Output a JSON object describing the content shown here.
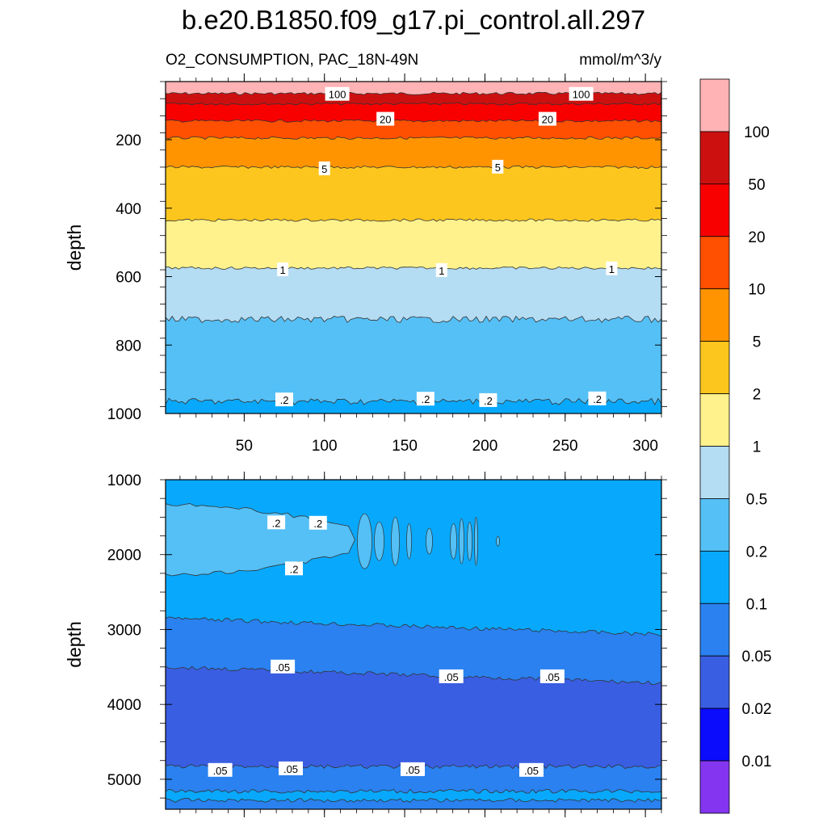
{
  "chart_data": {
    "type": "contour",
    "title": "b.e20.B1850.f09_g17.pi_control.all.297",
    "variable": "O2_CONSUMPTION, PAC_18N-49N",
    "units": "mmol/m^3/y",
    "xlim": [
      1,
      310
    ],
    "x_ticks": [
      50,
      100,
      150,
      200,
      250,
      300
    ],
    "x_tick_labels": [
      "50",
      "100",
      "150",
      "200",
      "250",
      "300"
    ],
    "colorbar": {
      "levels": [
        "100",
        "50",
        "20",
        "10",
        "5",
        "2",
        "1",
        "0.5",
        "0.2",
        "0.1",
        "0.05",
        "0.02",
        "0.01"
      ],
      "colors": [
        "#ffb3b5",
        "#cc1010",
        "#f90000",
        "#ff4f00",
        "#ff9400",
        "#fdc61e",
        "#fff28c",
        "#b4dcf3",
        "#55c0f6",
        "#08a9fd",
        "#2a81ef",
        "#3a5ee2",
        "#0b0cfc",
        "#8435f0"
      ]
    },
    "panels": [
      {
        "name": "upper",
        "ylabel": "depth",
        "ylim": [
          30,
          1000
        ],
        "y_ticks": [
          200,
          400,
          600,
          800,
          1000
        ],
        "y_tick_labels": [
          "200",
          "400",
          "600",
          "800",
          "1000"
        ],
        "bands": [
          {
            "from": 30,
            "to": 65,
            "color": "#ffb3b5",
            "range": "> 100"
          },
          {
            "from": 65,
            "to": 95,
            "color": "#cc1010",
            "range": "50 - 100"
          },
          {
            "from": 95,
            "to": 145,
            "color": "#f90000",
            "range": "20 - 50"
          },
          {
            "from": 145,
            "to": 195,
            "color": "#ff4f00",
            "range": "10 - 20"
          },
          {
            "from": 195,
            "to": 280,
            "color": "#ff9400",
            "range": "5 - 10"
          },
          {
            "from": 280,
            "to": 435,
            "color": "#fdc61e",
            "range": "2 - 5"
          },
          {
            "from": 435,
            "to": 575,
            "color": "#fff28c",
            "range": "1 - 2"
          },
          {
            "from": 575,
            "to": 725,
            "color": "#b4dcf3",
            "range": "0.5 - 1"
          },
          {
            "from": 725,
            "to": 965,
            "color": "#55c0f6",
            "range": "0.2 - 0.5"
          },
          {
            "from": 965,
            "to": 1000,
            "color": "#08a9fd",
            "range": "0.1 - 0.2"
          }
        ],
        "contour_labels": [
          {
            "text": "100",
            "x": 108,
            "y": 67
          },
          {
            "text": "100",
            "x": 260,
            "y": 67
          },
          {
            "text": "20",
            "x": 138,
            "y": 140
          },
          {
            "text": "20",
            "x": 239,
            "y": 140
          },
          {
            "text": "5",
            "x": 100,
            "y": 285
          },
          {
            "text": "5",
            "x": 208,
            "y": 280
          },
          {
            "text": "1",
            "x": 74,
            "y": 580
          },
          {
            "text": "1",
            "x": 173,
            "y": 582
          },
          {
            "text": "1",
            "x": 279,
            "y": 577
          },
          {
            "text": ".2",
            "x": 75,
            "y": 960
          },
          {
            "text": ".2",
            "x": 163,
            "y": 958
          },
          {
            "text": ".2",
            "x": 202,
            "y": 962
          },
          {
            "text": ".2",
            "x": 270,
            "y": 957
          }
        ]
      },
      {
        "name": "lower",
        "ylabel": "depth",
        "ylim": [
          1000,
          5400
        ],
        "y_ticks": [
          1000,
          2000,
          3000,
          4000,
          5000
        ],
        "y_tick_labels": [
          "1000",
          "2000",
          "3000",
          "4000",
          "5000"
        ],
        "bands": [
          {
            "from": 1000,
            "to": 2850,
            "color": "#08a9fd",
            "range": "0.1 - 0.2"
          },
          {
            "from": 2850,
            "to": 3500,
            "color": "#2a81ef",
            "range": "0.05 - 0.1"
          },
          {
            "from": 3500,
            "to": 4830,
            "color": "#3a5ee2",
            "range": "0.02 - 0.05"
          },
          {
            "from": 4830,
            "to": 5160,
            "color": "#2a81ef",
            "range": "0.05 - 0.1"
          },
          {
            "from": 5160,
            "to": 5280,
            "color": "#08a9fd",
            "range": "0.1 - 0.2"
          },
          {
            "from": 5280,
            "to": 5400,
            "color": "#2a81ef",
            "range": "0.05 - 0.1"
          }
        ],
        "regions": [
          {
            "kind": "plume",
            "color": "#55c0f6",
            "range": "0.2 - 0.5",
            "x_from": 1,
            "x_to": 115,
            "y_top": 1320,
            "y_bottom": 2280
          }
        ],
        "contour_labels": [
          {
            "text": ".2",
            "x": 70,
            "y": 1575
          },
          {
            "text": ".2",
            "x": 96,
            "y": 1580
          },
          {
            "text": ".2",
            "x": 81,
            "y": 2190
          },
          {
            "text": ".05",
            "x": 74,
            "y": 3500
          },
          {
            "text": ".05",
            "x": 179,
            "y": 3630
          },
          {
            "text": ".05",
            "x": 242,
            "y": 3630
          },
          {
            "text": ".05",
            "x": 35,
            "y": 4880
          },
          {
            "text": ".05",
            "x": 79,
            "y": 4860
          },
          {
            "text": ".05",
            "x": 155,
            "y": 4870
          },
          {
            "text": ".05",
            "x": 229,
            "y": 4880
          }
        ]
      }
    ]
  }
}
